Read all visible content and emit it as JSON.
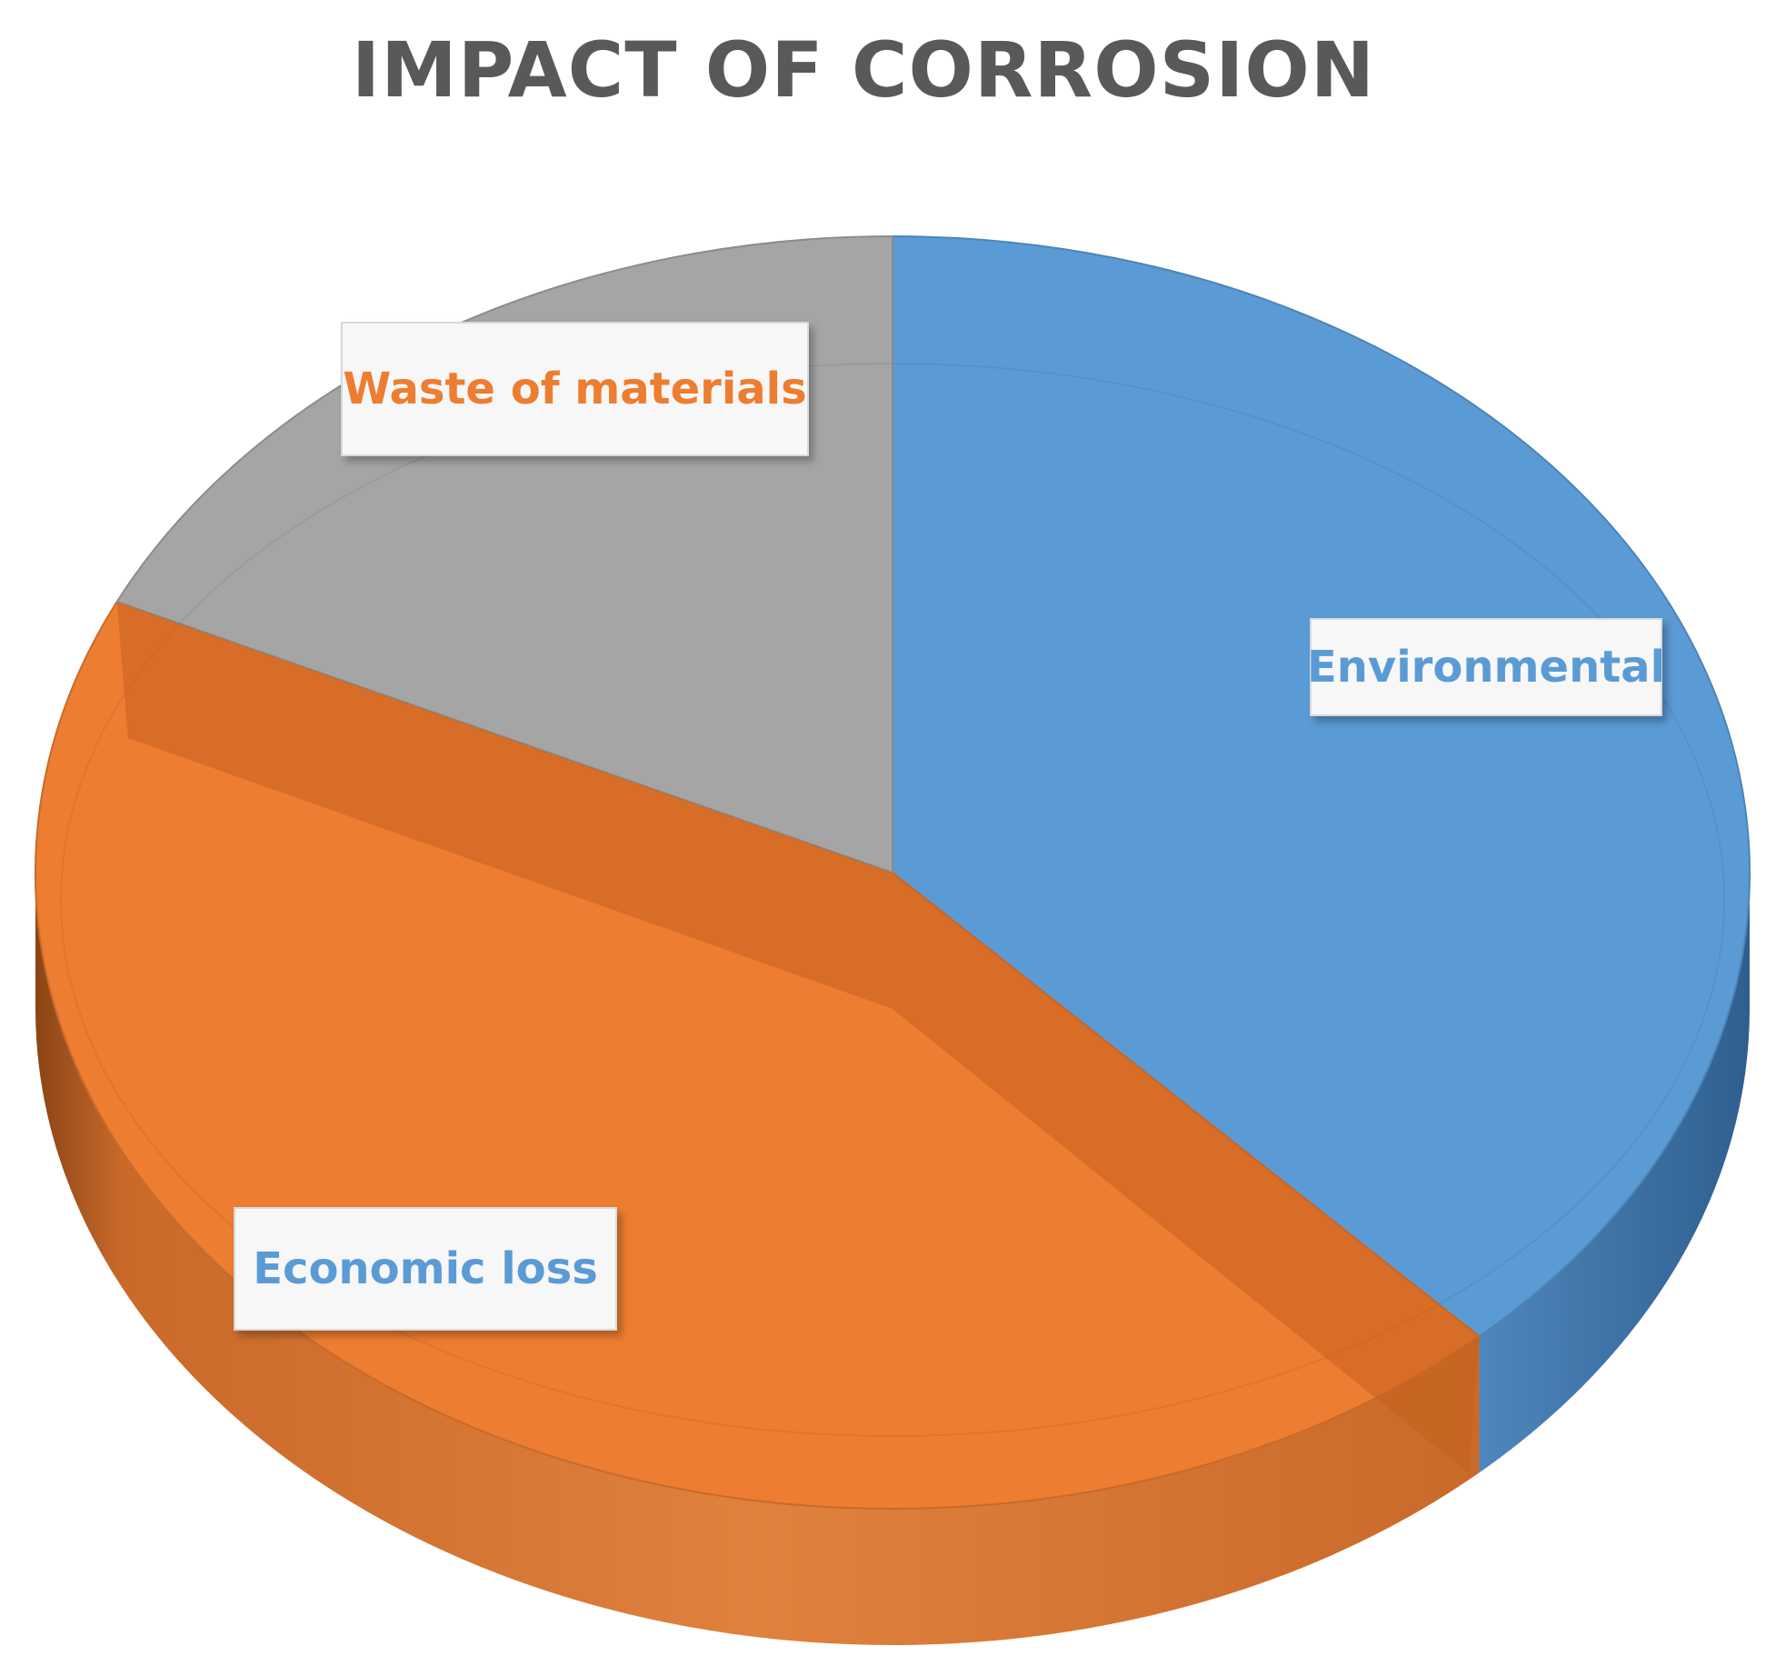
{
  "chart_data": {
    "type": "pie",
    "title": "IMPACT OF CORROSION",
    "style": "3d",
    "categories": [
      "Environmental",
      "Economic loss",
      "Waste of materials"
    ],
    "values": [
      38,
      44,
      18
    ],
    "unit": "%",
    "legend": "none",
    "label_colors": {
      "Environmental": "#5b9bd5",
      "Economic loss": "#5b9bd5",
      "Waste of materials": "#ed7d31"
    },
    "slice_colors": {
      "Environmental": "#5b9bd5",
      "Economic loss": "#ed7d31",
      "Waste of materials": "#a5a5a5"
    }
  }
}
